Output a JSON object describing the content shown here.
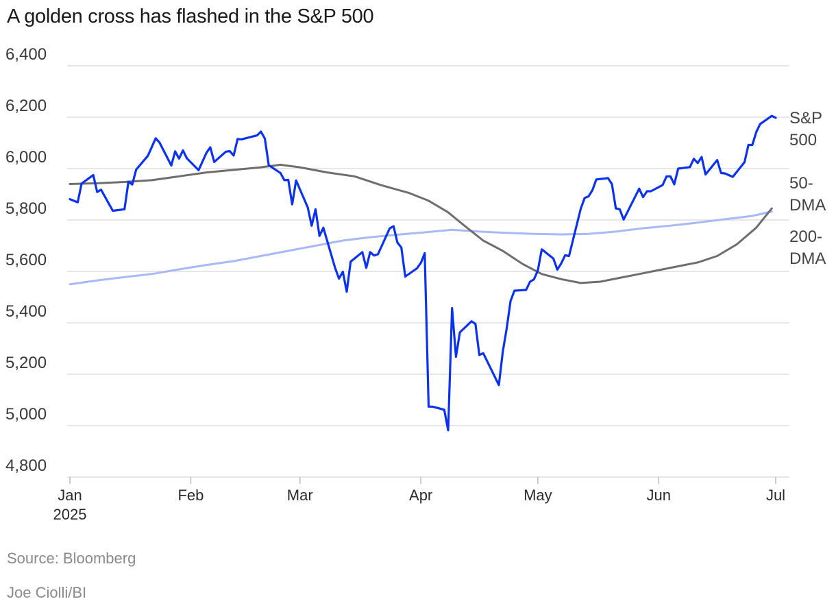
{
  "header": {
    "title": "A golden cross has flashed in the S&P 500"
  },
  "footer": {
    "source": "Source: Bloomberg",
    "credit": "Joe Ciolli/BI"
  },
  "colors": {
    "sp500": "#0a32f0",
    "dma50": "#6e6e70",
    "dma200": "#a9b8f8",
    "grid": "#dddddd",
    "label": "#444444"
  },
  "chart_data": {
    "type": "line",
    "ylim": [
      4800,
      6400
    ],
    "yticks": [
      4800,
      5000,
      5200,
      5400,
      5600,
      5800,
      6000,
      6200,
      6400
    ],
    "ytick_labels": [
      "4,800",
      "5,000",
      "5,200",
      "5,400",
      "5,600",
      "5,800",
      "6,000",
      "6,200",
      "6,400"
    ],
    "xlim": [
      "2025-01-01",
      "2025-07-01"
    ],
    "xticks": [
      {
        "date": "2025-01-01",
        "label": "Jan",
        "sublabel": "2025"
      },
      {
        "date": "2025-02-01",
        "label": "Feb",
        "sublabel": ""
      },
      {
        "date": "2025-03-01",
        "label": "Mar",
        "sublabel": ""
      },
      {
        "date": "2025-04-01",
        "label": "Apr",
        "sublabel": ""
      },
      {
        "date": "2025-05-01",
        "label": "May",
        "sublabel": ""
      },
      {
        "date": "2025-06-01",
        "label": "Jun",
        "sublabel": ""
      },
      {
        "date": "2025-07-01",
        "label": "Jul",
        "sublabel": ""
      }
    ],
    "series": [
      {
        "name": "200-DMA",
        "label_lines": [
          "200-",
          "DMA"
        ],
        "color": "#a9b8f8",
        "points": [
          [
            "2025-01-01",
            5550
          ],
          [
            "2025-01-08",
            5565
          ],
          [
            "2025-01-15",
            5578
          ],
          [
            "2025-01-22",
            5590
          ],
          [
            "2025-01-29",
            5608
          ],
          [
            "2025-02-05",
            5625
          ],
          [
            "2025-02-12",
            5640
          ],
          [
            "2025-02-19",
            5660
          ],
          [
            "2025-02-26",
            5680
          ],
          [
            "2025-03-05",
            5700
          ],
          [
            "2025-03-12",
            5720
          ],
          [
            "2025-03-19",
            5733
          ],
          [
            "2025-03-26",
            5743
          ],
          [
            "2025-04-02",
            5752
          ],
          [
            "2025-04-09",
            5762
          ],
          [
            "2025-04-16",
            5755
          ],
          [
            "2025-04-23",
            5750
          ],
          [
            "2025-04-30",
            5746
          ],
          [
            "2025-05-07",
            5744
          ],
          [
            "2025-05-14",
            5746
          ],
          [
            "2025-05-21",
            5755
          ],
          [
            "2025-05-28",
            5768
          ],
          [
            "2025-06-04",
            5778
          ],
          [
            "2025-06-11",
            5790
          ],
          [
            "2025-06-18",
            5803
          ],
          [
            "2025-06-25",
            5816
          ],
          [
            "2025-06-30",
            5833
          ]
        ]
      },
      {
        "name": "50-DMA",
        "label_lines": [
          "50-",
          "DMA"
        ],
        "color": "#6e6e70",
        "points": [
          [
            "2025-01-01",
            5940
          ],
          [
            "2025-01-08",
            5943
          ],
          [
            "2025-01-15",
            5948
          ],
          [
            "2025-01-22",
            5955
          ],
          [
            "2025-01-29",
            5970
          ],
          [
            "2025-02-05",
            5985
          ],
          [
            "2025-02-12",
            5995
          ],
          [
            "2025-02-19",
            6005
          ],
          [
            "2025-02-24",
            6015
          ],
          [
            "2025-03-01",
            6005
          ],
          [
            "2025-03-08",
            5985
          ],
          [
            "2025-03-15",
            5970
          ],
          [
            "2025-03-22",
            5935
          ],
          [
            "2025-03-29",
            5905
          ],
          [
            "2025-04-03",
            5875
          ],
          [
            "2025-04-08",
            5830
          ],
          [
            "2025-04-12",
            5780
          ],
          [
            "2025-04-17",
            5720
          ],
          [
            "2025-04-22",
            5680
          ],
          [
            "2025-04-27",
            5630
          ],
          [
            "2025-05-02",
            5590
          ],
          [
            "2025-05-07",
            5570
          ],
          [
            "2025-05-12",
            5555
          ],
          [
            "2025-05-17",
            5560
          ],
          [
            "2025-05-22",
            5575
          ],
          [
            "2025-05-27",
            5590
          ],
          [
            "2025-06-01",
            5605
          ],
          [
            "2025-06-06",
            5620
          ],
          [
            "2025-06-11",
            5635
          ],
          [
            "2025-06-16",
            5660
          ],
          [
            "2025-06-21",
            5705
          ],
          [
            "2025-06-26",
            5770
          ],
          [
            "2025-06-30",
            5845
          ]
        ]
      },
      {
        "name": "S&P 500",
        "label_lines": [
          "S&P",
          "500"
        ],
        "color": "#0a32f0",
        "points": [
          [
            "2025-01-01",
            5881
          ],
          [
            "2025-01-03",
            5869
          ],
          [
            "2025-01-04",
            5942
          ],
          [
            "2025-01-07",
            5975
          ],
          [
            "2025-01-08",
            5909
          ],
          [
            "2025-01-09",
            5918
          ],
          [
            "2025-01-12",
            5836
          ],
          [
            "2025-01-15",
            5842
          ],
          [
            "2025-01-16",
            5949
          ],
          [
            "2025-01-17",
            5938
          ],
          [
            "2025-01-18",
            5996
          ],
          [
            "2025-01-21",
            6050
          ],
          [
            "2025-01-23",
            6118
          ],
          [
            "2025-01-24",
            6101
          ],
          [
            "2025-01-27",
            6012
          ],
          [
            "2025-01-28",
            6067
          ],
          [
            "2025-01-29",
            6039
          ],
          [
            "2025-01-30",
            6071
          ],
          [
            "2025-01-31",
            6040
          ],
          [
            "2025-02-03",
            5994
          ],
          [
            "2025-02-05",
            6061
          ],
          [
            "2025-02-06",
            6083
          ],
          [
            "2025-02-07",
            6026
          ],
          [
            "2025-02-10",
            6066
          ],
          [
            "2025-02-11",
            6068
          ],
          [
            "2025-02-12",
            6051
          ],
          [
            "2025-02-13",
            6115
          ],
          [
            "2025-02-14",
            6114
          ],
          [
            "2025-02-18",
            6129
          ],
          [
            "2025-02-19",
            6144
          ],
          [
            "2025-02-20",
            6117
          ],
          [
            "2025-02-21",
            6013
          ],
          [
            "2025-02-24",
            5983
          ],
          [
            "2025-02-25",
            5955
          ],
          [
            "2025-02-26",
            5956
          ],
          [
            "2025-02-27",
            5861
          ],
          [
            "2025-02-28",
            5954
          ],
          [
            "2025-03-03",
            5849
          ],
          [
            "2025-03-04",
            5778
          ],
          [
            "2025-03-05",
            5842
          ],
          [
            "2025-03-06",
            5738
          ],
          [
            "2025-03-07",
            5770
          ],
          [
            "2025-03-10",
            5614
          ],
          [
            "2025-03-11",
            5572
          ],
          [
            "2025-03-12",
            5599
          ],
          [
            "2025-03-13",
            5521
          ],
          [
            "2025-03-14",
            5638
          ],
          [
            "2025-03-17",
            5675
          ],
          [
            "2025-03-18",
            5614
          ],
          [
            "2025-03-19",
            5675
          ],
          [
            "2025-03-20",
            5662
          ],
          [
            "2025-03-21",
            5667
          ],
          [
            "2025-03-24",
            5767
          ],
          [
            "2025-03-25",
            5776
          ],
          [
            "2025-03-26",
            5712
          ],
          [
            "2025-03-27",
            5693
          ],
          [
            "2025-03-28",
            5580
          ],
          [
            "2025-03-31",
            5612
          ],
          [
            "2025-04-01",
            5633
          ],
          [
            "2025-04-02",
            5671
          ],
          [
            "2025-04-03",
            5074
          ],
          [
            "2025-04-04",
            5074
          ],
          [
            "2025-04-07",
            5062
          ],
          [
            "2025-04-08",
            4982
          ],
          [
            "2025-04-09",
            5457
          ],
          [
            "2025-04-10",
            5268
          ],
          [
            "2025-04-11",
            5363
          ],
          [
            "2025-04-14",
            5406
          ],
          [
            "2025-04-15",
            5396
          ],
          [
            "2025-04-16",
            5275
          ],
          [
            "2025-04-17",
            5282
          ],
          [
            "2025-04-21",
            5158
          ],
          [
            "2025-04-22",
            5287
          ],
          [
            "2025-04-23",
            5376
          ],
          [
            "2025-04-24",
            5484
          ],
          [
            "2025-04-25",
            5525
          ],
          [
            "2025-04-28",
            5528
          ],
          [
            "2025-04-29",
            5560
          ],
          [
            "2025-04-30",
            5569
          ],
          [
            "2025-05-01",
            5604
          ],
          [
            "2025-05-02",
            5686
          ],
          [
            "2025-05-05",
            5650
          ],
          [
            "2025-05-06",
            5607
          ],
          [
            "2025-05-07",
            5631
          ],
          [
            "2025-05-08",
            5663
          ],
          [
            "2025-05-09",
            5660
          ],
          [
            "2025-05-12",
            5844
          ],
          [
            "2025-05-13",
            5886
          ],
          [
            "2025-05-14",
            5892
          ],
          [
            "2025-05-15",
            5916
          ],
          [
            "2025-05-16",
            5958
          ],
          [
            "2025-05-19",
            5963
          ],
          [
            "2025-05-20",
            5940
          ],
          [
            "2025-05-21",
            5845
          ],
          [
            "2025-05-22",
            5842
          ],
          [
            "2025-05-23",
            5802
          ],
          [
            "2025-05-27",
            5922
          ],
          [
            "2025-05-28",
            5889
          ],
          [
            "2025-05-29",
            5912
          ],
          [
            "2025-05-30",
            5912
          ],
          [
            "2025-06-02",
            5936
          ],
          [
            "2025-06-03",
            5970
          ],
          [
            "2025-06-04",
            5970
          ],
          [
            "2025-06-05",
            5939
          ],
          [
            "2025-06-06",
            6000
          ],
          [
            "2025-06-09",
            6006
          ],
          [
            "2025-06-10",
            6038
          ],
          [
            "2025-06-11",
            6022
          ],
          [
            "2025-06-12",
            6045
          ],
          [
            "2025-06-13",
            5977
          ],
          [
            "2025-06-16",
            6033
          ],
          [
            "2025-06-17",
            5983
          ],
          [
            "2025-06-18",
            5981
          ],
          [
            "2025-06-20",
            5968
          ],
          [
            "2025-06-23",
            6025
          ],
          [
            "2025-06-24",
            6092
          ],
          [
            "2025-06-25",
            6092
          ],
          [
            "2025-06-26",
            6141
          ],
          [
            "2025-06-27",
            6173
          ],
          [
            "2025-06-30",
            6205
          ],
          [
            "2025-07-01",
            6198
          ]
        ]
      }
    ]
  }
}
